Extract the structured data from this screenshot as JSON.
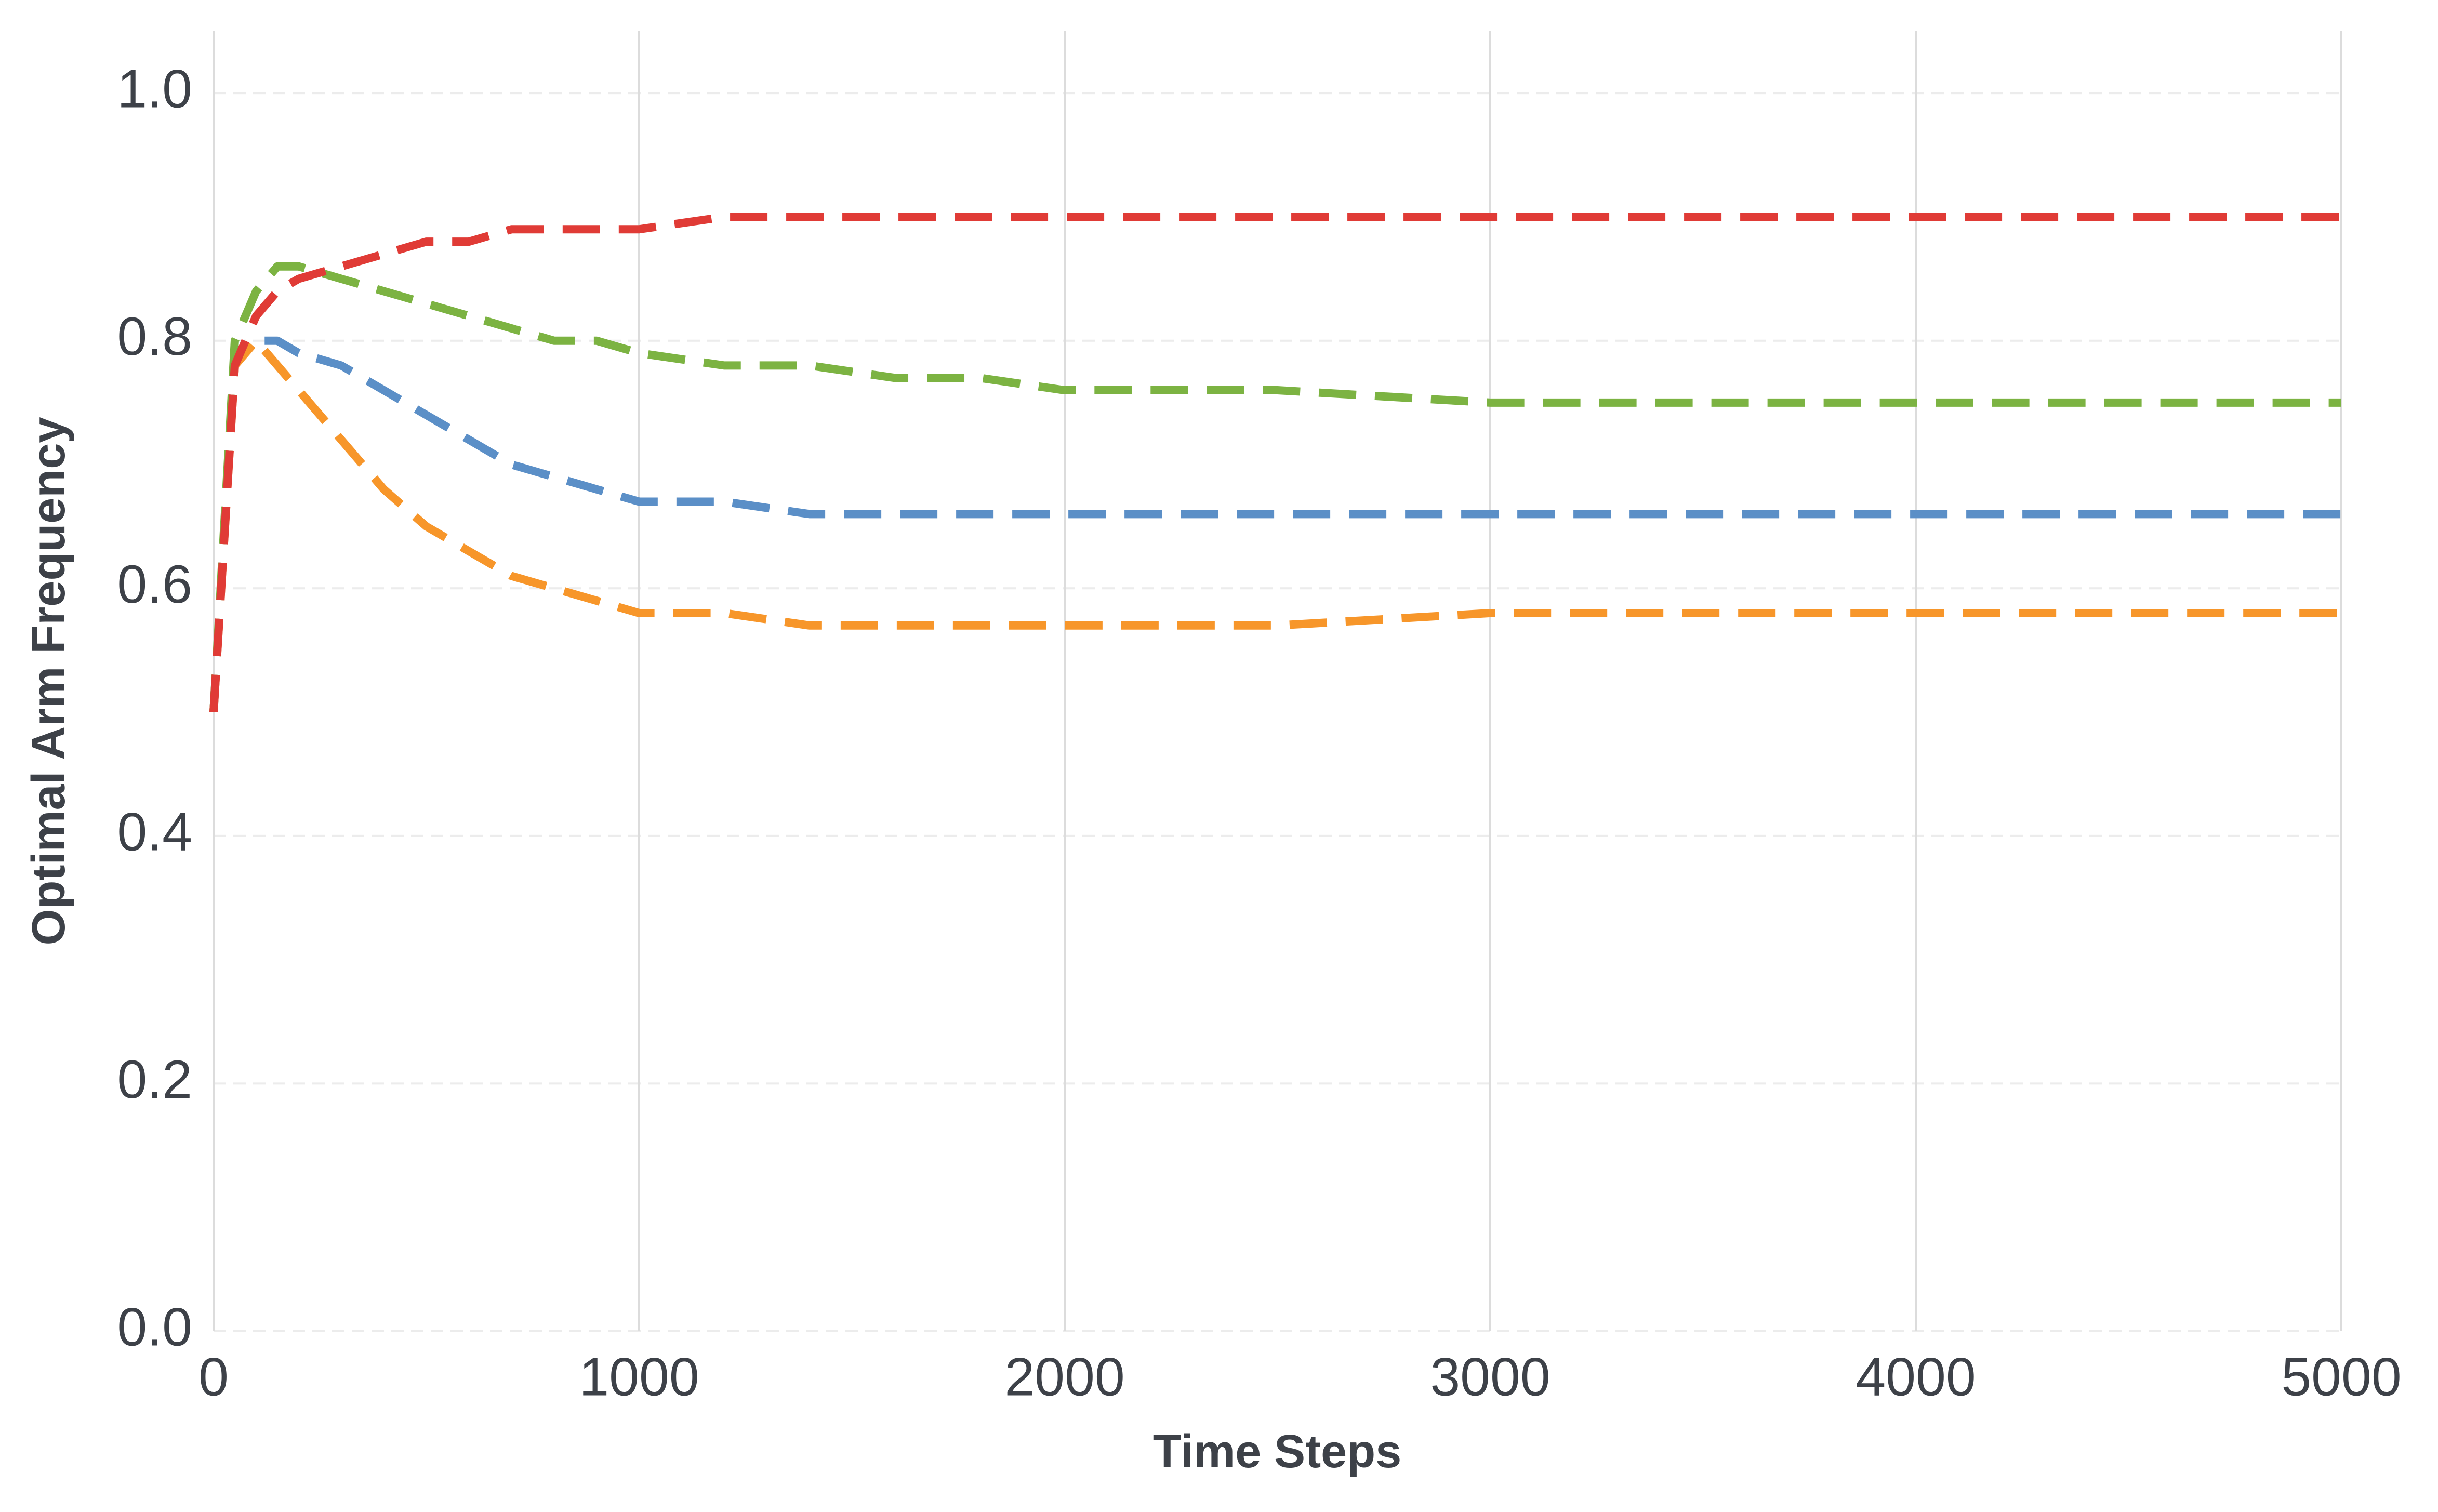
{
  "chart_data": {
    "type": "line",
    "x_label": "Time Steps",
    "y_label": "Optimal Arm Frequency",
    "x": [
      0,
      50,
      100,
      150,
      200,
      300,
      400,
      500,
      600,
      700,
      800,
      900,
      1000,
      1200,
      1400,
      1600,
      1800,
      2000,
      2500,
      3000,
      3500,
      4000,
      4500,
      5000
    ],
    "series": [
      {
        "color": "#5b8fc7",
        "values": [
          0.5,
          0.79,
          0.8,
          0.8,
          0.79,
          0.78,
          0.76,
          0.74,
          0.72,
          0.7,
          0.69,
          0.68,
          0.67,
          0.67,
          0.66,
          0.66,
          0.66,
          0.66,
          0.66,
          0.66,
          0.66,
          0.66,
          0.66,
          0.66
        ]
      },
      {
        "color": "#f7962a",
        "values": [
          0.5,
          0.78,
          0.8,
          0.78,
          0.76,
          0.72,
          0.68,
          0.65,
          0.63,
          0.61,
          0.6,
          0.59,
          0.58,
          0.58,
          0.57,
          0.57,
          0.57,
          0.57,
          0.57,
          0.58,
          0.58,
          0.58,
          0.58,
          0.58
        ]
      },
      {
        "color": "#7cb342",
        "values": [
          0.5,
          0.8,
          0.84,
          0.86,
          0.86,
          0.85,
          0.84,
          0.83,
          0.82,
          0.81,
          0.8,
          0.8,
          0.79,
          0.78,
          0.78,
          0.77,
          0.77,
          0.76,
          0.76,
          0.75,
          0.75,
          0.75,
          0.75,
          0.75
        ]
      },
      {
        "color": "#e03b36",
        "values": [
          0.5,
          0.78,
          0.82,
          0.84,
          0.85,
          0.86,
          0.87,
          0.88,
          0.88,
          0.89,
          0.89,
          0.89,
          0.89,
          0.9,
          0.9,
          0.9,
          0.9,
          0.9,
          0.9,
          0.9,
          0.9,
          0.9,
          0.9,
          0.9
        ]
      }
    ],
    "xlim": [
      0,
      5000
    ],
    "xticks": [
      0,
      1000,
      2000,
      3000,
      4000,
      5000
    ],
    "ylim": [
      0,
      1.05
    ],
    "yticks": [
      {
        "value": 0,
        "label": "0.0"
      },
      0.2,
      0.4,
      0.6,
      0.8,
      {
        "value": 1,
        "label": "1.0"
      }
    ],
    "grid": true
  }
}
